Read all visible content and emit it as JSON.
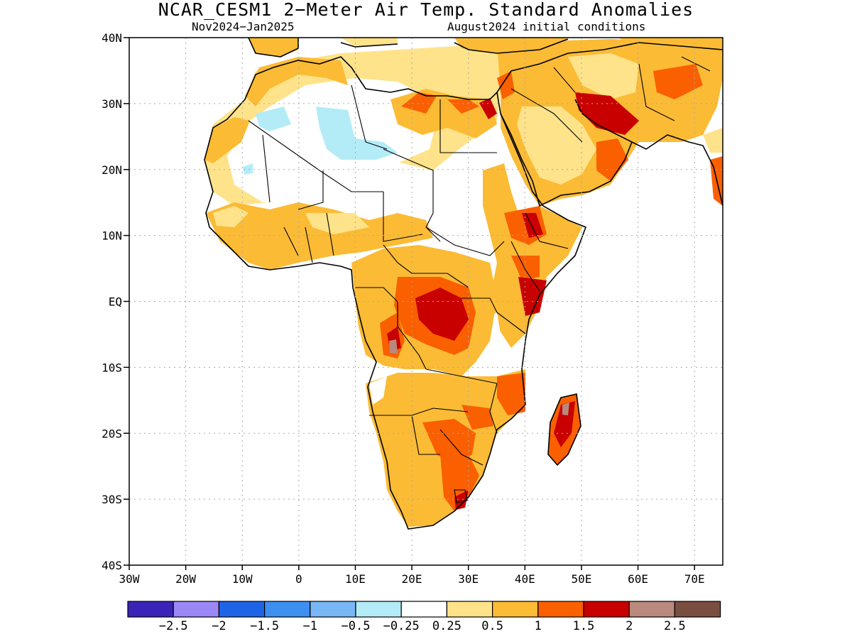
{
  "title": "NCAR_CESM1 2−Meter Air Temp. Standard Anomalies",
  "subtitle_left": "Nov2024−Jan2025",
  "subtitle_right": "August2024 initial conditions",
  "lat_labels": [
    "40N",
    "30N",
    "20N",
    "10N",
    "EQ",
    "10S",
    "20S",
    "30S",
    "40S"
  ],
  "lon_labels": [
    "30W",
    "20W",
    "10W",
    "0",
    "10E",
    "20E",
    "30E",
    "40E",
    "50E",
    "60E",
    "70E"
  ],
  "colorbar": {
    "colors": [
      "#3a24b8",
      "#9b87f5",
      "#1f64e6",
      "#3d8ff0",
      "#79b6f6",
      "#b3ecf7",
      "#ffffff",
      "#ffe38a",
      "#fbbb35",
      "#fa5f00",
      "#c80000",
      "#b8897c",
      "#7a4e40"
    ],
    "labels": [
      "−2.5",
      "−2",
      "−1.5",
      "−1",
      "−0.5",
      "−0.25",
      "0.25",
      "0.5",
      "1",
      "1.5",
      "2",
      "2.5"
    ]
  },
  "legend_colors": {
    "land_outline": "#000000",
    "grid": "#aaaaaa"
  }
}
